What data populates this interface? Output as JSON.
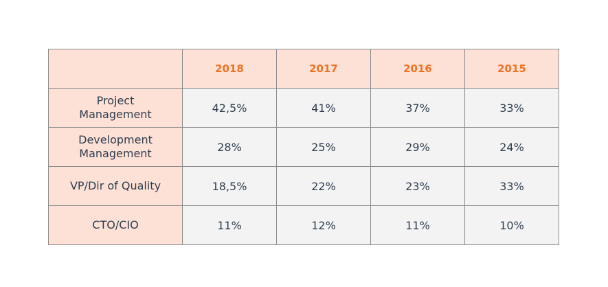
{
  "colors": {
    "header_bg": "#fde0d6",
    "year_text": "#f07322",
    "body_bg": "#f3f3f3",
    "body_text": "#2f3e4e",
    "border": "#8c8c8c"
  },
  "chart_data": {
    "type": "table",
    "columns": [
      "2018",
      "2017",
      "2016",
      "2015"
    ],
    "rows": [
      {
        "label": "Project\nManagement",
        "values": [
          "42,5%",
          "41%",
          "37%",
          "33%"
        ]
      },
      {
        "label": "Development\nManagement",
        "values": [
          "28%",
          "25%",
          "29%",
          "24%"
        ]
      },
      {
        "label": "VP/Dir of Quality",
        "values": [
          "18,5%",
          "22%",
          "23%",
          "33%"
        ]
      },
      {
        "label": "CTO/CIO",
        "values": [
          "11%",
          "12%",
          "11%",
          "10%"
        ]
      }
    ]
  }
}
